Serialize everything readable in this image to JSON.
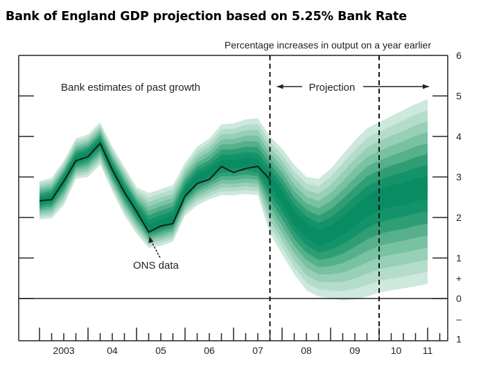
{
  "title": "Bank of England GDP projection based on 5.25% Bank Rate",
  "chart_data": {
    "type": "area",
    "title": "Bank of England GDP projection based on 5.25% Bank Rate",
    "subtitle": "Percentage increases in output on a year earlier",
    "xlabel": "",
    "ylabel": "Percentage increases in output on a year earlier",
    "ylim": [
      -1,
      6
    ],
    "xlim": [
      2002.7,
      2011.35
    ],
    "grid": false,
    "y_ticks": [
      6,
      5,
      4,
      3,
      2,
      1,
      0,
      -1
    ],
    "y_tick_labels": [
      "6",
      "5",
      "4",
      "3",
      "2",
      "1",
      "0",
      "1"
    ],
    "y_sign_labels": [
      {
        "value": 0.5,
        "text": "+"
      },
      {
        "value": -0.5,
        "text": "–"
      }
    ],
    "x_tick_labels": [
      {
        "x": 2003.5,
        "label": "2003"
      },
      {
        "x": 2004.5,
        "label": "04"
      },
      {
        "x": 2005.5,
        "label": "05"
      },
      {
        "x": 2006.5,
        "label": "06"
      },
      {
        "x": 2007.5,
        "label": "07"
      },
      {
        "x": 2008.5,
        "label": "08"
      },
      {
        "x": 2009.5,
        "label": "09"
      },
      {
        "x": 2010.35,
        "label": "10"
      },
      {
        "x": 2011.0,
        "label": "11"
      }
    ],
    "vertical_dashed_lines": [
      2007.75,
      2010.0
    ],
    "annotations": {
      "past_label": "Bank estimates of past growth",
      "projection_label": "Projection",
      "ons_label": "ONS data"
    },
    "series": [
      {
        "name": "ONS data",
        "kind": "line",
        "x": [
          2003.0,
          2003.25,
          2003.5,
          2003.75,
          2004.0,
          2004.25,
          2004.5,
          2004.75,
          2005.0,
          2005.25,
          2005.5,
          2005.75,
          2006.0,
          2006.25,
          2006.5,
          2006.75,
          2007.0,
          2007.25,
          2007.5,
          2007.75
        ],
        "values": [
          2.41,
          2.44,
          2.89,
          3.4,
          3.5,
          3.83,
          3.18,
          2.62,
          2.15,
          1.64,
          1.79,
          1.85,
          2.53,
          2.84,
          2.94,
          3.26,
          3.11,
          3.21,
          3.26,
          2.94
        ]
      },
      {
        "name": "Bank estimates of past growth (fan)",
        "kind": "fan",
        "x": [
          2003.0,
          2003.25,
          2003.5,
          2003.75,
          2004.0,
          2004.25,
          2004.5,
          2004.75,
          2005.0,
          2005.25,
          2005.5,
          2005.75,
          2006.0,
          2006.25,
          2006.5,
          2006.75,
          2007.0,
          2007.25,
          2007.5,
          2007.75
        ],
        "central": [
          2.41,
          2.48,
          2.93,
          3.44,
          3.56,
          3.85,
          3.2,
          2.66,
          2.18,
          1.72,
          1.85,
          1.95,
          2.62,
          2.95,
          3.1,
          3.3,
          3.3,
          3.35,
          3.3,
          2.94
        ],
        "upper": [
          2.9,
          2.98,
          3.4,
          3.95,
          4.05,
          4.35,
          3.75,
          3.25,
          2.75,
          2.6,
          2.7,
          2.8,
          3.35,
          3.75,
          3.95,
          4.3,
          4.32,
          4.42,
          4.45,
          4.0
        ],
        "lower": [
          1.95,
          1.98,
          2.3,
          2.95,
          3.0,
          3.3,
          2.65,
          2.05,
          1.6,
          1.25,
          1.3,
          1.4,
          2.05,
          2.3,
          2.45,
          2.55,
          2.55,
          2.58,
          2.55,
          1.6
        ]
      },
      {
        "name": "Projection (fan)",
        "kind": "fan",
        "x": [
          2007.75,
          2008.0,
          2008.25,
          2008.5,
          2008.75,
          2009.0,
          2009.25,
          2009.5,
          2009.75,
          2010.0,
          2010.25,
          2010.5,
          2010.75,
          2011.0
        ],
        "central": [
          2.94,
          2.5,
          2.0,
          1.7,
          1.5,
          1.6,
          1.8,
          2.05,
          2.3,
          2.45,
          2.55,
          2.6,
          2.7,
          2.75
        ],
        "upper": [
          4.0,
          3.7,
          3.3,
          3.0,
          2.95,
          3.2,
          3.55,
          3.9,
          4.2,
          4.35,
          4.5,
          4.65,
          4.8,
          4.92
        ],
        "lower": [
          1.6,
          1.1,
          0.6,
          0.2,
          0.05,
          0.0,
          -0.05,
          -0.02,
          0.05,
          0.15,
          0.2,
          0.25,
          0.3,
          0.36
        ]
      }
    ]
  }
}
